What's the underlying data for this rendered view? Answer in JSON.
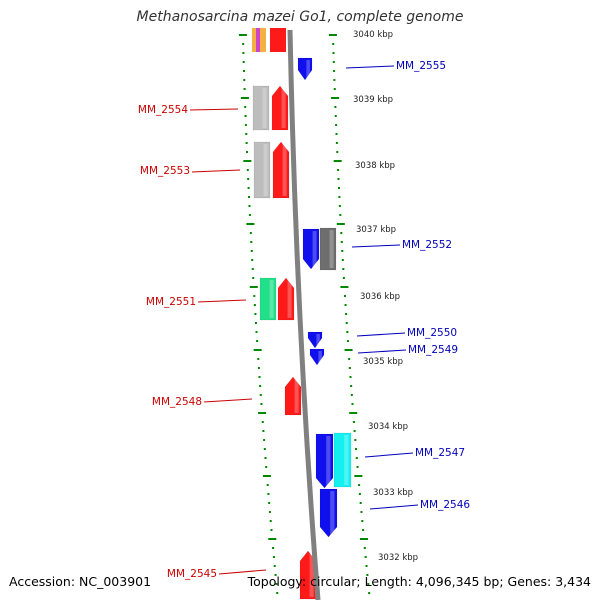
{
  "title": "Methanosarcina mazei Go1, complete genome",
  "accession": "Accession: NC_003901",
  "summary": "Topology: circular; Length: 4,096,345 bp; Genes: 3,434",
  "colors": {
    "forward_label": "#cc0000",
    "reverse_label": "#0000bb",
    "tick": "#008800",
    "backbone": "#808080"
  },
  "scale_labels": [
    "3040 kbp",
    "3039 kbp",
    "3038 kbp",
    "3037 kbp",
    "3036 kbp",
    "3035 kbp",
    "3034 kbp",
    "3033 kbp",
    "3032 kbp"
  ],
  "genes_forward": [
    {
      "id": "MM_2554"
    },
    {
      "id": "MM_2553"
    },
    {
      "id": "MM_2551"
    },
    {
      "id": "MM_2548"
    },
    {
      "id": "MM_2545"
    }
  ],
  "genes_reverse": [
    {
      "id": "MM_2555"
    },
    {
      "id": "MM_2552"
    },
    {
      "id": "MM_2550"
    },
    {
      "id": "MM_2549"
    },
    {
      "id": "MM_2547"
    },
    {
      "id": "MM_2546"
    }
  ]
}
